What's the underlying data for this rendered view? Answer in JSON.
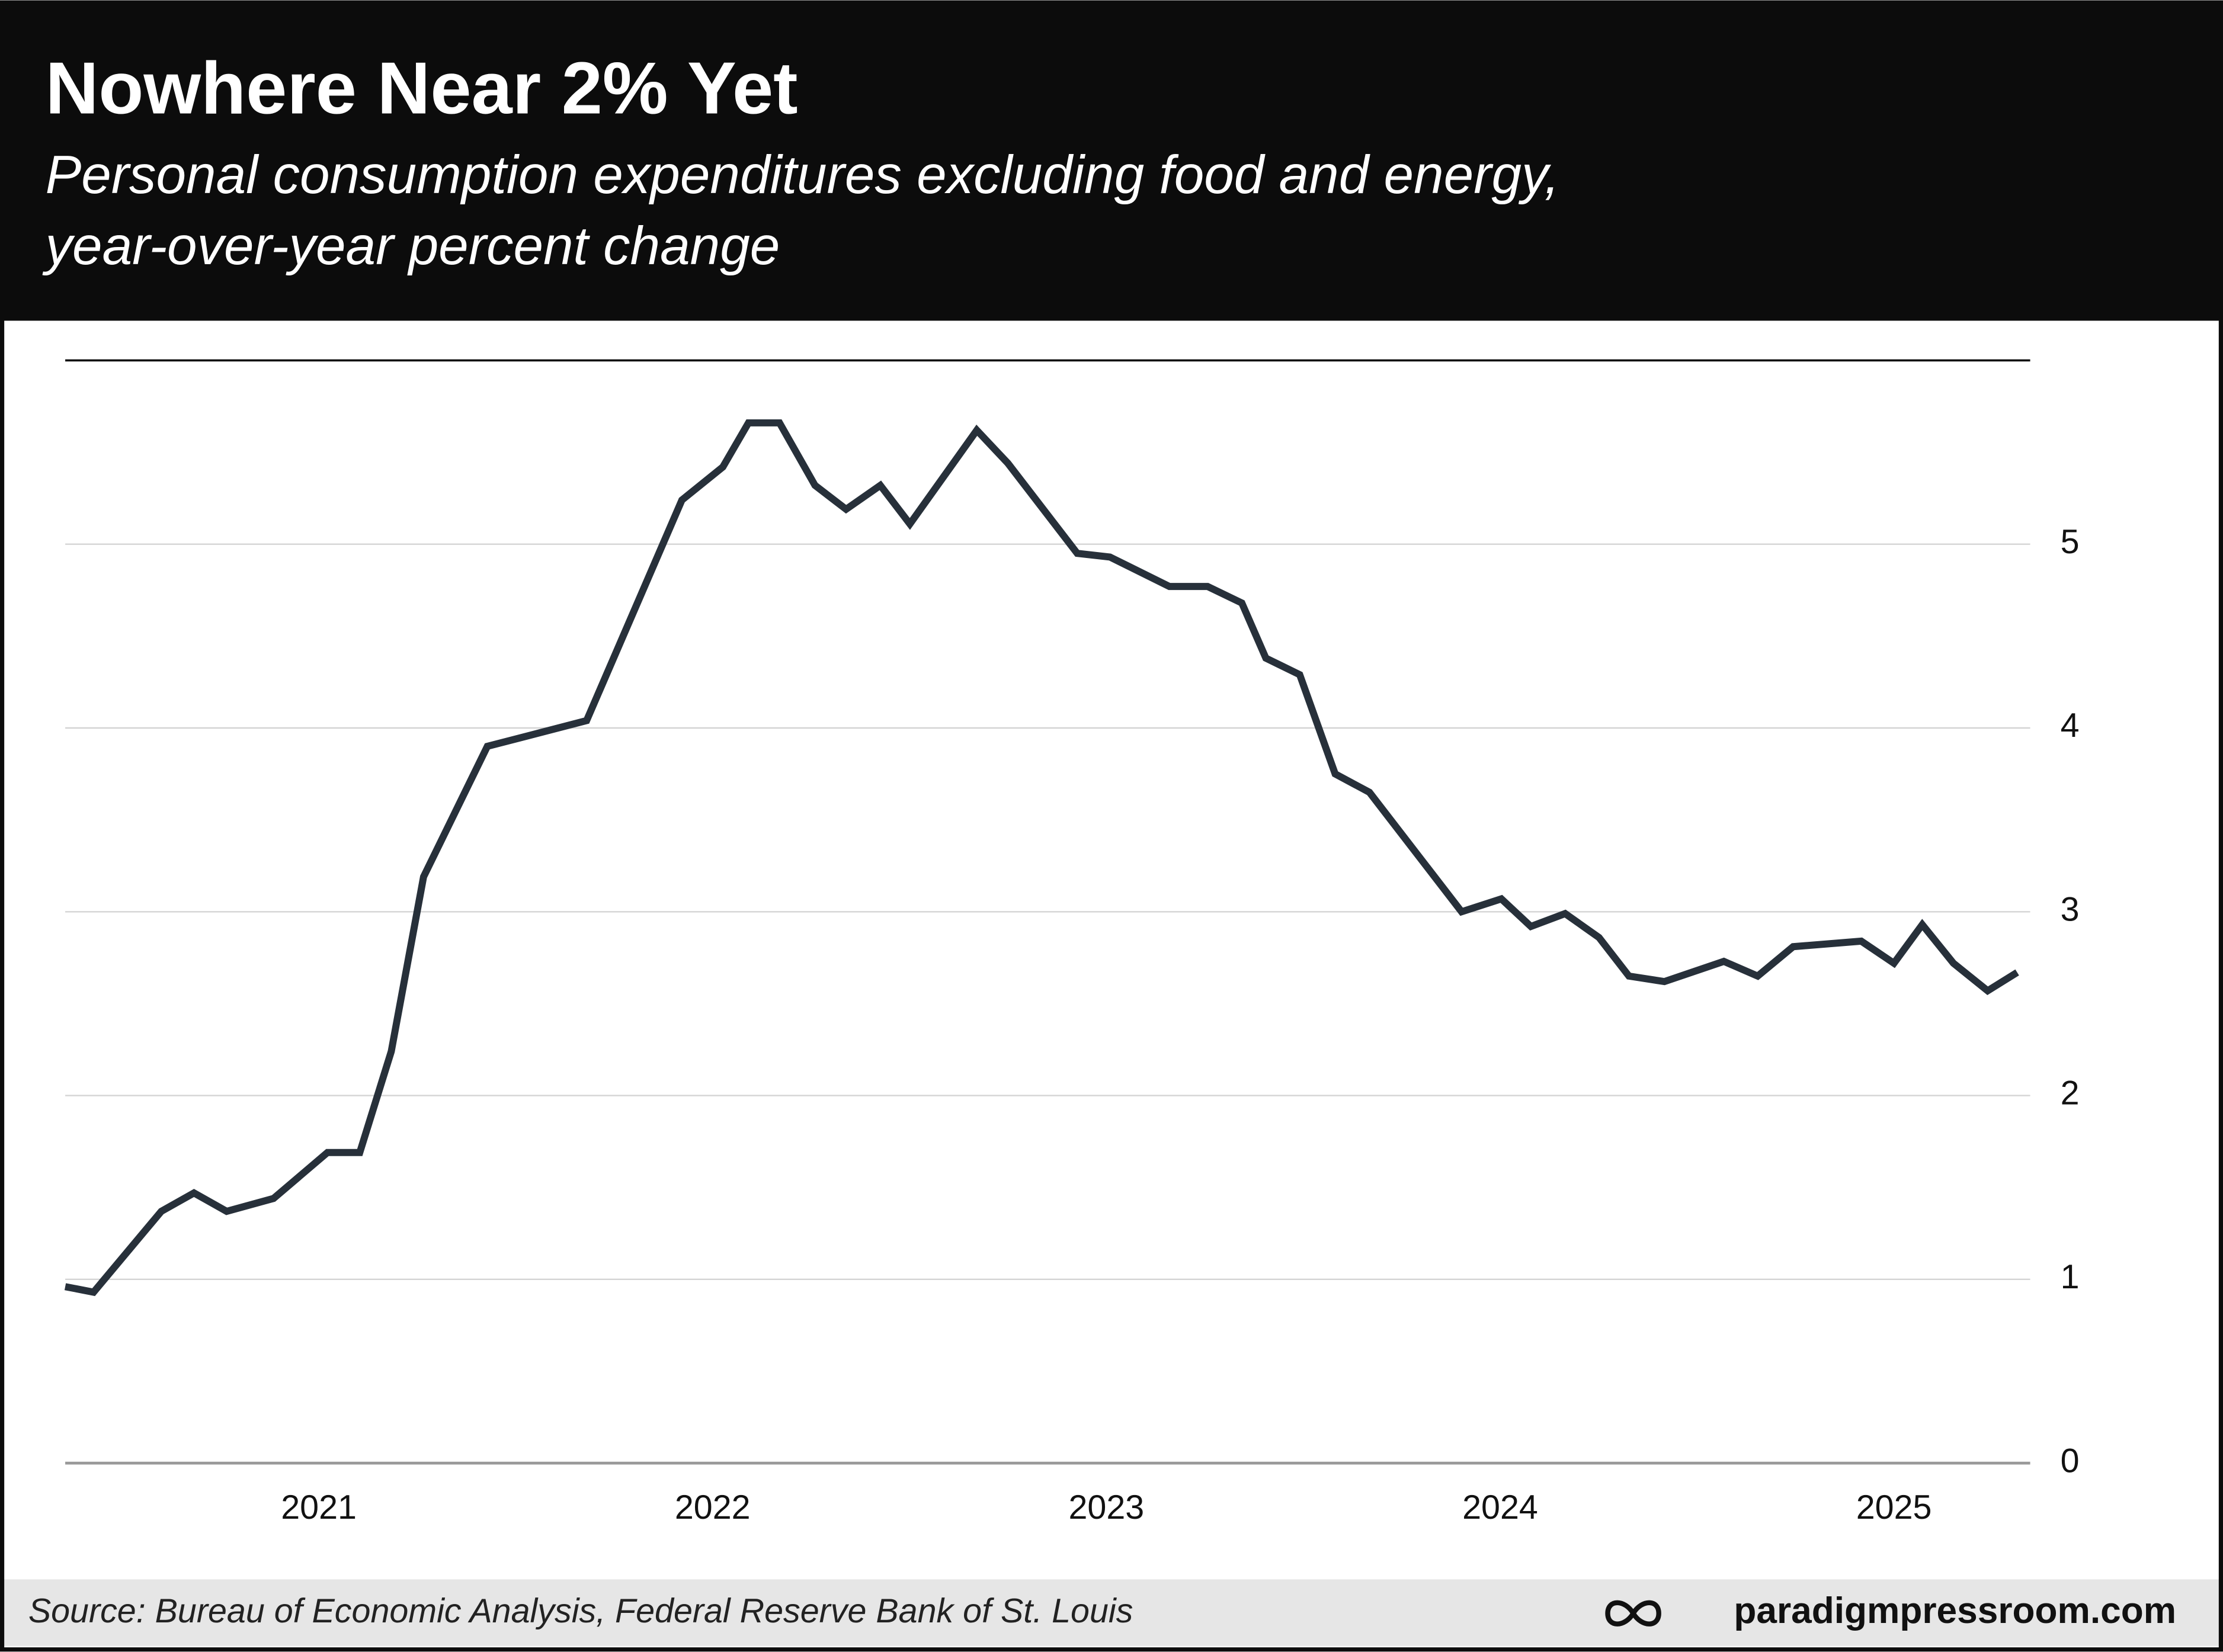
{
  "chart_data": {
    "type": "line",
    "title": "Nowhere Near 2% Yet",
    "subtitle": [
      "Personal consumption expenditures excluding food and energy,",
      "year-over-year percent change"
    ],
    "source": "Source: Bureau of Economic Analysis, Federal Reserve Bank of St. Louis",
    "brand": "paradigmpressroom.com",
    "color": "#27303a",
    "x": [
      2020.356,
      2020.428,
      2020.6,
      2020.683,
      2020.766,
      2020.885,
      2021.022,
      2021.104,
      2021.184,
      2021.266,
      2021.428,
      2021.68,
      2021.922,
      2022.026,
      2022.091,
      2022.17,
      2022.26,
      2022.339,
      2022.426,
      2022.501,
      2022.671,
      2022.75,
      2022.926,
      2023.009,
      2023.16,
      2023.257,
      2023.344,
      2023.405,
      2023.491,
      2023.581,
      2023.668,
      2023.902,
      2024.003,
      2024.078,
      2024.165,
      2024.251,
      2024.327,
      2024.417,
      2024.568,
      2024.654,
      2024.744,
      2024.917,
      2025.0,
      2025.072,
      2025.151,
      2025.238,
      2025.313
    ],
    "values": [
      0.96,
      0.93,
      1.37,
      1.47,
      1.37,
      1.44,
      1.69,
      1.69,
      2.24,
      3.19,
      3.9,
      4.04,
      5.24,
      5.42,
      5.66,
      5.66,
      5.32,
      5.19,
      5.32,
      5.11,
      5.62,
      5.44,
      4.95,
      4.93,
      4.77,
      4.77,
      4.68,
      4.38,
      4.29,
      3.75,
      3.65,
      3.0,
      3.07,
      2.92,
      2.99,
      2.86,
      2.65,
      2.62,
      2.73,
      2.65,
      2.81,
      2.84,
      2.72,
      2.93,
      2.72,
      2.57,
      2.67
    ],
    "xlim": [
      2020.356,
      2025.346
    ],
    "xticks": [
      2021,
      2022,
      2023,
      2024,
      2025
    ],
    "ylim": [
      0,
      6
    ],
    "yticks": [
      0,
      1,
      2,
      3,
      4,
      5
    ],
    "grid": true
  }
}
